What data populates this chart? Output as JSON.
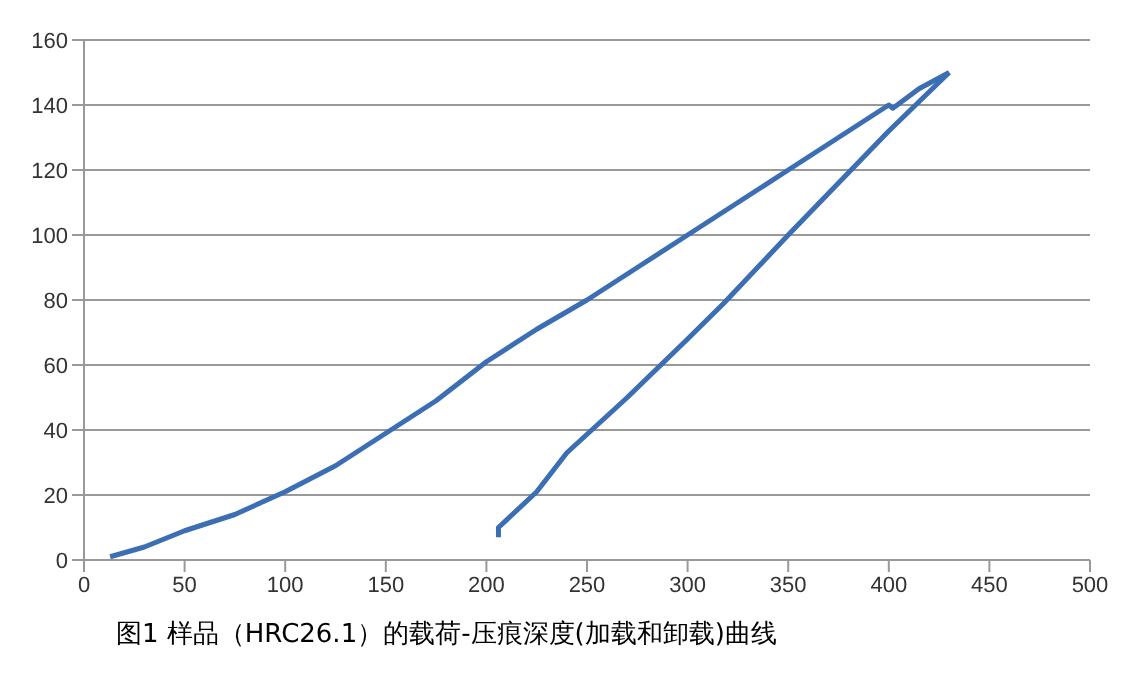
{
  "chart_data": {
    "type": "line",
    "title": "图1 样品（HRC26.1）的载荷-压痕深度(加载和卸载)曲线",
    "series": [
      {
        "color": "#3c6eb4",
        "x": [
          13,
          30,
          50,
          75,
          100,
          125,
          150,
          175,
          200,
          225,
          250,
          275,
          300,
          325,
          350,
          375,
          400,
          402,
          415,
          430
        ],
        "values": [
          1,
          4,
          9,
          14,
          21,
          29,
          39,
          49,
          61,
          71,
          80,
          90,
          100,
          110,
          120,
          130,
          140,
          139,
          145,
          150
        ]
      },
      {
        "color": "#3c6eb4",
        "x": [
          430,
          400,
          350,
          318,
          300,
          270,
          240,
          225,
          206,
          206
        ],
        "values": [
          150,
          132,
          100,
          79,
          68,
          50,
          33,
          21,
          10,
          7
        ]
      }
    ],
    "xlim": [
      0,
      500
    ],
    "xticks": [
      0,
      50,
      100,
      150,
      200,
      250,
      300,
      350,
      400,
      450,
      500
    ],
    "ylim": [
      0,
      160
    ],
    "yticks": [
      0,
      20,
      40,
      60,
      80,
      100,
      120,
      140,
      160
    ],
    "grid": "y",
    "marker": "none",
    "line_style": "solid",
    "legend": false
  }
}
